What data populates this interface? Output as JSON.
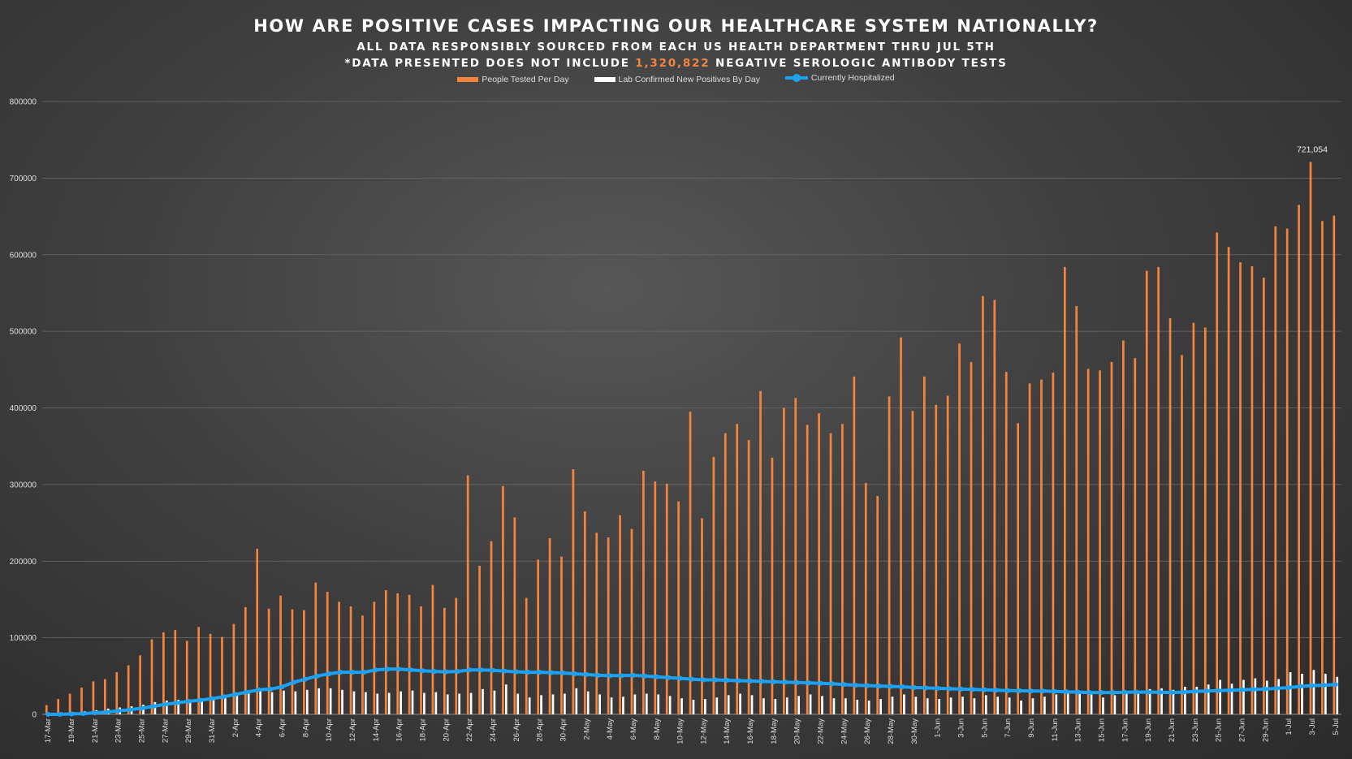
{
  "header": {
    "title": "HOW ARE POSITIVE CASES IMPACTING OUR HEALTHCARE SYSTEM NATIONALLY?",
    "subtitle_line1": "ALL DATA RESPONSIBLY SOURCED FROM EACH US HEALTH DEPARTMENT THRU JUL 5TH",
    "subtitle_line2_before": "*DATA PRESENTED DOES NOT INCLUDE",
    "subtitle_line2_highlight": "1,320,822",
    "subtitle_line2_after": "NEGATIVE SEROLOGIC ANTIBODY TESTS"
  },
  "colors": {
    "tested": "#f5843c",
    "positives": "#ffffff",
    "hospitalized": "#1da1f2",
    "highlight": "#f5843c"
  },
  "chart_data": {
    "type": "bar",
    "ylim": [
      0,
      800000
    ],
    "yticks": [
      "0",
      "100000",
      "200000",
      "300000",
      "400000",
      "500000",
      "600000",
      "700000",
      "800000"
    ],
    "grid": true,
    "legend_position": "top",
    "peak_label": "721,054",
    "categories": [
      "17-Mar",
      "18-Mar",
      "19-Mar",
      "20-Mar",
      "21-Mar",
      "22-Mar",
      "23-Mar",
      "24-Mar",
      "25-Mar",
      "26-Mar",
      "27-Mar",
      "28-Mar",
      "29-Mar",
      "30-Mar",
      "31-Mar",
      "1-Apr",
      "2-Apr",
      "3-Apr",
      "4-Apr",
      "5-Apr",
      "6-Apr",
      "7-Apr",
      "8-Apr",
      "9-Apr",
      "10-Apr",
      "11-Apr",
      "12-Apr",
      "13-Apr",
      "14-Apr",
      "15-Apr",
      "16-Apr",
      "17-Apr",
      "18-Apr",
      "19-Apr",
      "20-Apr",
      "21-Apr",
      "22-Apr",
      "23-Apr",
      "24-Apr",
      "25-Apr",
      "26-Apr",
      "27-Apr",
      "28-Apr",
      "29-Apr",
      "30-Apr",
      "1-May",
      "2-May",
      "3-May",
      "4-May",
      "5-May",
      "6-May",
      "7-May",
      "8-May",
      "9-May",
      "10-May",
      "11-May",
      "12-May",
      "13-May",
      "14-May",
      "15-May",
      "16-May",
      "17-May",
      "18-May",
      "19-May",
      "20-May",
      "21-May",
      "22-May",
      "23-May",
      "24-May",
      "25-May",
      "26-May",
      "27-May",
      "28-May",
      "29-May",
      "30-May",
      "31-May",
      "1-Jun",
      "2-Jun",
      "3-Jun",
      "4-Jun",
      "5-Jun",
      "6-Jun",
      "7-Jun",
      "8-Jun",
      "9-Jun",
      "10-Jun",
      "11-Jun",
      "12-Jun",
      "13-Jun",
      "14-Jun",
      "15-Jun",
      "16-Jun",
      "17-Jun",
      "18-Jun",
      "19-Jun",
      "20-Jun",
      "21-Jun",
      "22-Jun",
      "23-Jun",
      "24-Jun",
      "25-Jun",
      "26-Jun",
      "27-Jun",
      "28-Jun",
      "29-Jun",
      "30-Jun",
      "1-Jul",
      "2-Jul",
      "3-Jul",
      "4-Jul",
      "5-Jul"
    ],
    "series": [
      {
        "name": "People Tested Per Day",
        "type": "bar",
        "values": [
          12000,
          20000,
          27000,
          35000,
          43000,
          46000,
          55000,
          64000,
          77000,
          98000,
          107000,
          110000,
          96000,
          114000,
          105000,
          101000,
          118000,
          140000,
          216000,
          138000,
          155000,
          137000,
          136000,
          172000,
          160000,
          147000,
          141000,
          129000,
          147000,
          162000,
          158000,
          156000,
          141000,
          169000,
          139000,
          152000,
          312000,
          194000,
          226000,
          298000,
          257000,
          152000,
          202000,
          230000,
          206000,
          320000,
          265000,
          237000,
          231000,
          260000,
          242000,
          318000,
          304000,
          301000,
          278000,
          395000,
          256000,
          336000,
          367000,
          379000,
          358000,
          422000,
          335000,
          400000,
          413000,
          378000,
          393000,
          367000,
          379000,
          441000,
          302000,
          285000,
          415000,
          492000,
          396000,
          441000,
          404000,
          416000,
          484000,
          460000,
          546000,
          541000,
          447000,
          380000,
          432000,
          437000,
          446000,
          584000,
          533000,
          451000,
          449000,
          460000,
          488000,
          465000,
          579000,
          584000,
          517000,
          469000,
          511000,
          505000,
          629000,
          610000,
          590000,
          585000,
          570000,
          637000,
          634000,
          665000,
          721054,
          644000,
          651000
        ]
      },
      {
        "name": "Lab Confirmed New Positives By Day",
        "type": "bar",
        "values": [
          2000,
          2500,
          3000,
          4000,
          5500,
          7500,
          9000,
          10500,
          12500,
          16000,
          18000,
          19000,
          19500,
          20000,
          22000,
          24000,
          26000,
          28000,
          32000,
          29000,
          31000,
          30000,
          32000,
          34000,
          34000,
          32000,
          30000,
          29000,
          27000,
          28000,
          30000,
          31000,
          28000,
          29000,
          26000,
          27000,
          28000,
          33000,
          31000,
          39000,
          27000,
          22000,
          25000,
          26000,
          27000,
          34000,
          30000,
          26000,
          22000,
          23000,
          26000,
          27000,
          26000,
          24000,
          21000,
          19000,
          20000,
          22000,
          25000,
          27000,
          25000,
          21000,
          20000,
          22000,
          24000,
          26000,
          24000,
          21000,
          21000,
          19000,
          18000,
          20000,
          23000,
          26000,
          23000,
          21000,
          20000,
          22000,
          23000,
          21000,
          25000,
          23000,
          22000,
          18000,
          21000,
          23000,
          26000,
          28000,
          28000,
          26000,
          22000,
          25000,
          27000,
          28000,
          33000,
          34000,
          32000,
          36000,
          36000,
          39000,
          45000,
          40000,
          45000,
          47000,
          44000,
          46000,
          55000,
          53000,
          58000,
          53000,
          49000
        ]
      },
      {
        "name": "Currently Hospitalized",
        "type": "line",
        "values": [
          0,
          0,
          500,
          1000,
          2000,
          3000,
          4500,
          6000,
          8000,
          10500,
          13000,
          15000,
          17000,
          18500,
          20500,
          23000,
          26000,
          29000,
          32000,
          33000,
          36000,
          42000,
          46000,
          50000,
          53000,
          55000,
          55000,
          55000,
          58000,
          59000,
          59000,
          58000,
          57000,
          56000,
          55500,
          56000,
          58000,
          58000,
          57500,
          56500,
          55500,
          55000,
          55000,
          54500,
          54000,
          53000,
          52000,
          51000,
          50500,
          50500,
          51000,
          50000,
          49000,
          48000,
          47000,
          46000,
          45000,
          45000,
          44500,
          44000,
          43500,
          43000,
          42500,
          42000,
          41500,
          41000,
          40500,
          40000,
          39000,
          38000,
          37500,
          37000,
          36500,
          36000,
          35000,
          34500,
          34000,
          33500,
          33000,
          32500,
          32000,
          31500,
          31000,
          30800,
          30500,
          30500,
          30000,
          29500,
          29000,
          28500,
          28500,
          28500,
          28800,
          29000,
          29000,
          28800,
          28500,
          29000,
          30000,
          30500,
          31000,
          31500,
          32000,
          32500,
          33000,
          34000,
          35000,
          36500,
          37500,
          38000,
          39000
        ]
      }
    ]
  }
}
